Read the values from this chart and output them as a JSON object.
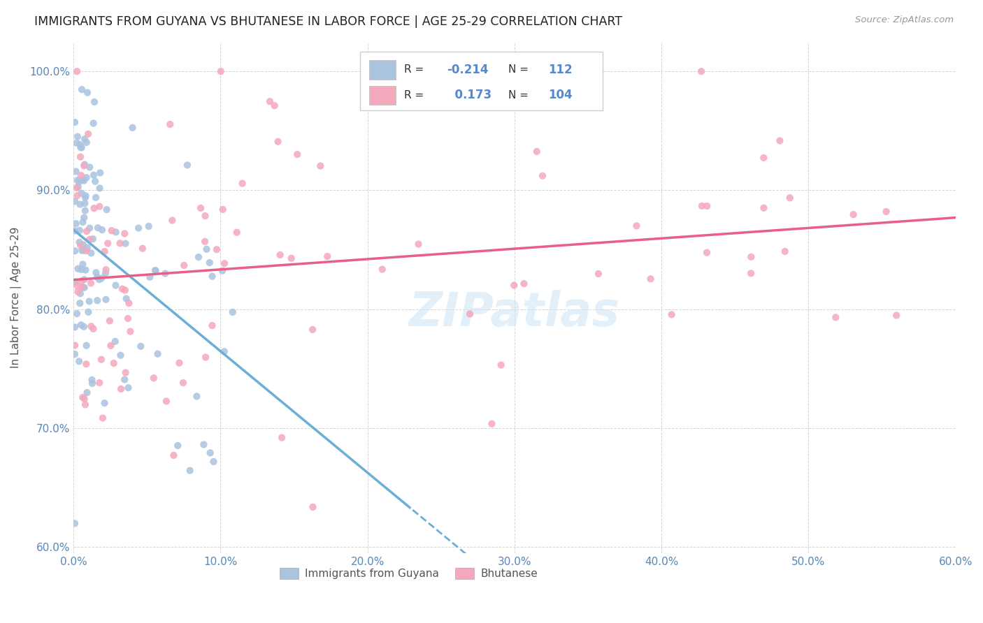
{
  "title": "IMMIGRANTS FROM GUYANA VS BHUTANESE IN LABOR FORCE | AGE 25-29 CORRELATION CHART",
  "source": "Source: ZipAtlas.com",
  "ylabel": "In Labor Force | Age 25-29",
  "xlim": [
    0.0,
    0.6
  ],
  "ylim": [
    0.595,
    1.025
  ],
  "xticks": [
    0.0,
    0.1,
    0.2,
    0.3,
    0.4,
    0.5,
    0.6
  ],
  "yticks": [
    0.6,
    0.7,
    0.8,
    0.9,
    1.0
  ],
  "R_guyana": -0.214,
  "N_guyana": 112,
  "R_bhutan": 0.173,
  "N_bhutan": 104,
  "color_guyana": "#aac4e0",
  "color_bhutan": "#f4a8bc",
  "trendline_guyana_color": "#6baed6",
  "trendline_bhutan_color": "#e8608a",
  "legend_label_guyana": "Immigrants from Guyana",
  "legend_label_bhutan": "Bhutanese"
}
